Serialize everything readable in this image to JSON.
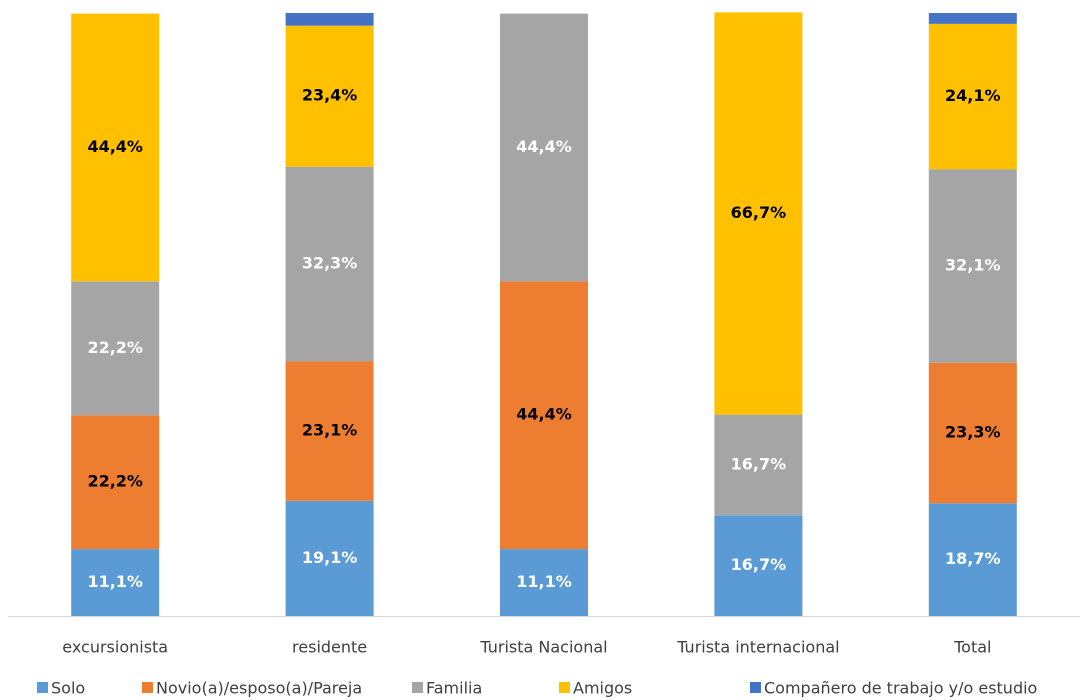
{
  "chart_data": {
    "type": "stacked_bar",
    "categories": [
      "excursionista",
      "residente",
      "Turista Nacional",
      "Turista internacional",
      "Total"
    ],
    "ylim": [
      0,
      100
    ],
    "series": [
      {
        "name": "Solo",
        "color": "#5b9bd5",
        "label_color": "#ffffff",
        "values": [
          11.1,
          19.1,
          11.1,
          16.7,
          18.7
        ],
        "value_labels": [
          "11,1%",
          "19,1%",
          "11,1%",
          "16,7%",
          "18,7%"
        ]
      },
      {
        "name": "Novio(a)/esposo(a)/Pareja",
        "color": "#ed7d31",
        "label_color": "#000000",
        "values": [
          22.2,
          23.1,
          44.4,
          null,
          23.3
        ],
        "value_labels": [
          "22,2%",
          "23,1%",
          "44,4%",
          null,
          "23,3%"
        ]
      },
      {
        "name": "Familia",
        "color": "#a5a5a5",
        "label_color": "#ffffff",
        "values": [
          22.2,
          32.3,
          44.4,
          16.7,
          32.1
        ],
        "value_labels": [
          "22,2%",
          "32,3%",
          "44,4%",
          "16,7%",
          "32,1%"
        ]
      },
      {
        "name": "Amigos",
        "color": "#ffc000",
        "label_color": "#000000",
        "values": [
          44.4,
          23.4,
          null,
          66.7,
          24.1
        ],
        "value_labels": [
          "44,4%",
          "23,4%",
          null,
          "66,7%",
          "24,1%"
        ]
      },
      {
        "name": "Compañero de trabajo y/o estudio",
        "color": "#4472c4",
        "values": [
          null,
          2.1,
          null,
          null,
          1.8
        ]
      }
    ]
  }
}
